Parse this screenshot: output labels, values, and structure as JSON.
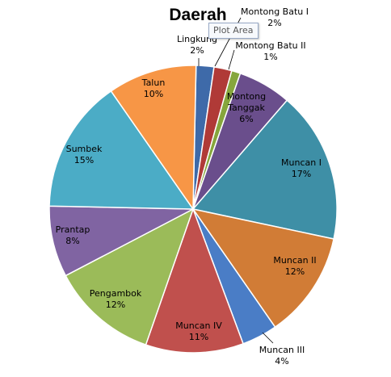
{
  "chart_data": {
    "type": "pie",
    "title": "Daerah",
    "slices": [
      {
        "label": "Lingkung",
        "value": 2,
        "pct_label": "2%",
        "color": "#3e6aa9"
      },
      {
        "label": "Montong Batu I",
        "value": 2,
        "pct_label": "2%",
        "color": "#b03a37"
      },
      {
        "label": "Montong Batu II",
        "value": 1,
        "pct_label": "1%",
        "color": "#86a63c"
      },
      {
        "label": "Montong\nTanggak",
        "value": 6,
        "pct_label": "6%",
        "color": "#6a4e8c"
      },
      {
        "label": "Muncan I",
        "value": 17,
        "pct_label": "17%",
        "color": "#3e8fa6"
      },
      {
        "label": "Muncan II",
        "value": 12,
        "pct_label": "12%",
        "color": "#d17c36"
      },
      {
        "label": "Muncan III",
        "value": 4,
        "pct_label": "4%",
        "color": "#4a7dc6"
      },
      {
        "label": "Muncan IV",
        "value": 11,
        "pct_label": "11%",
        "color": "#c0504d"
      },
      {
        "label": "Pengambok",
        "value": 12,
        "pct_label": "12%",
        "color": "#9bbb59"
      },
      {
        "label": "Prantap",
        "value": 8,
        "pct_label": "8%",
        "color": "#8064a2"
      },
      {
        "label": "Sumbek",
        "value": 15,
        "pct_label": "15%",
        "color": "#4bacc6"
      },
      {
        "label": "Talun",
        "value": 10,
        "pct_label": "10%",
        "color": "#f79646"
      }
    ]
  },
  "tooltip": {
    "text": "Plot Area"
  }
}
